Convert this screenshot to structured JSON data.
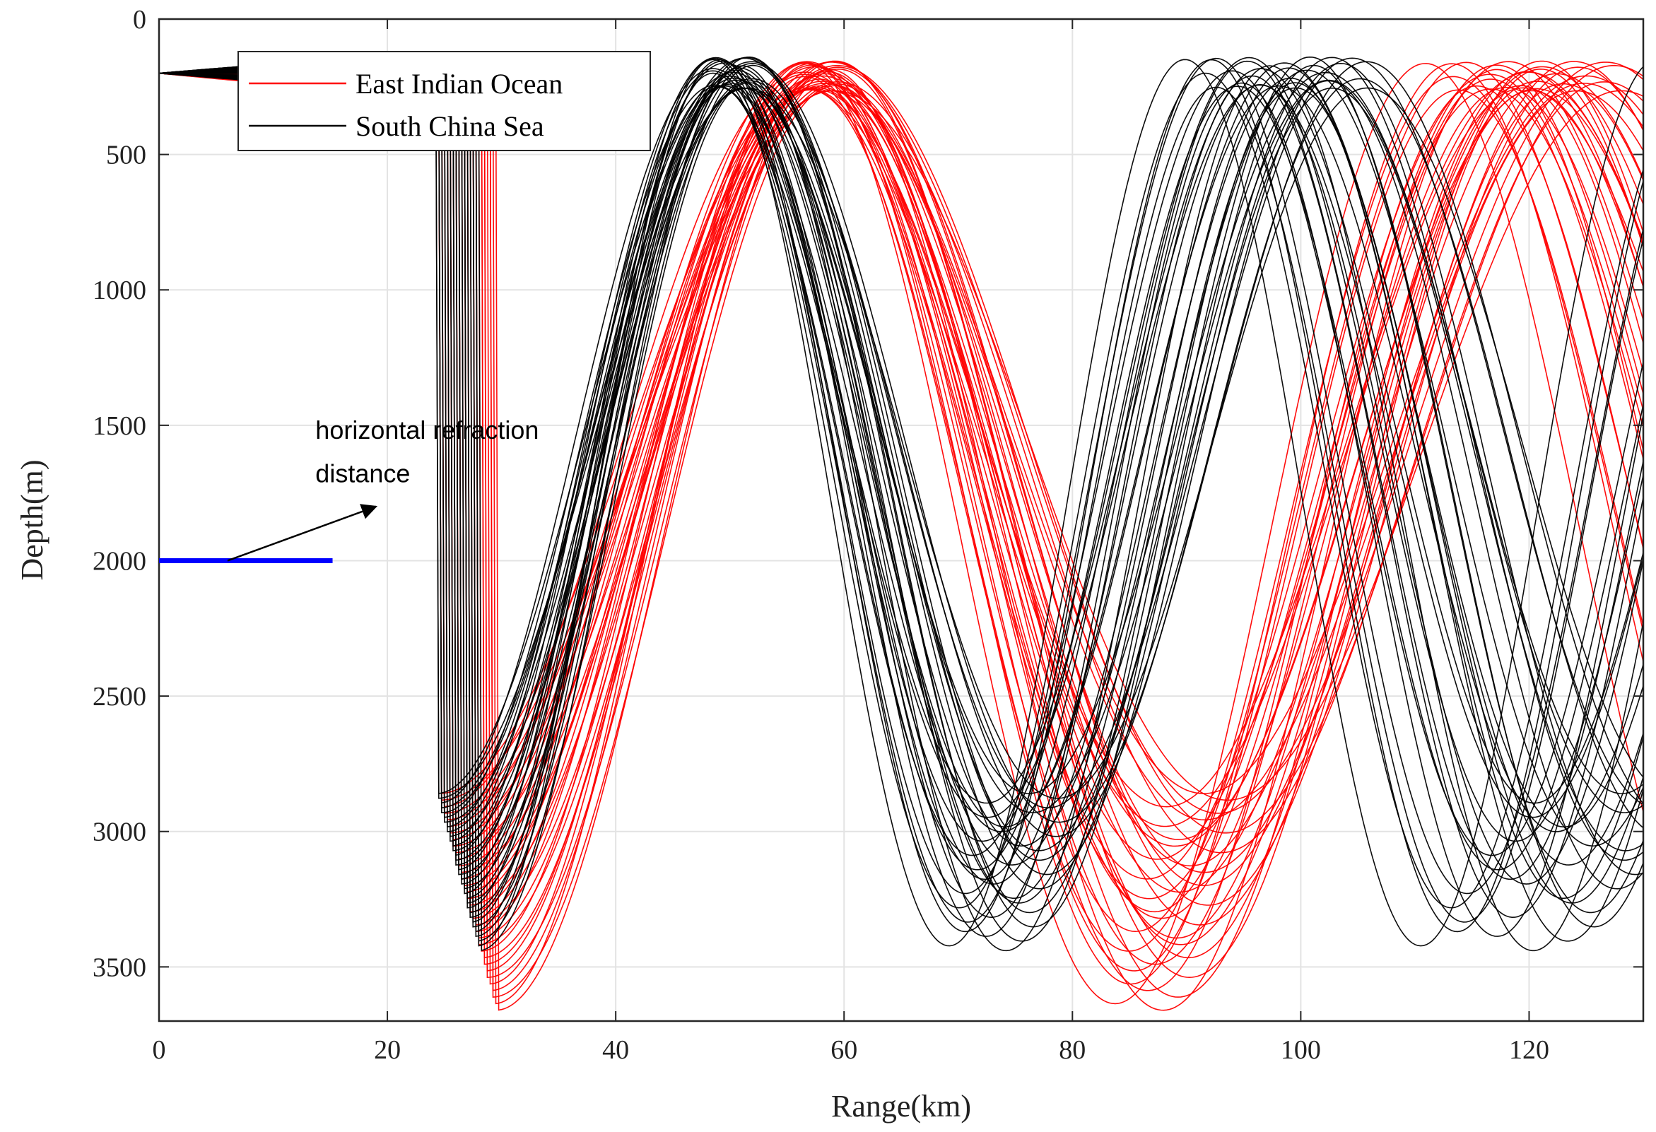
{
  "chart_data": {
    "type": "line",
    "title": "",
    "xlabel": "Range(km)",
    "ylabel": "Depth(m)",
    "xlim": [
      0,
      130
    ],
    "ylim": [
      0,
      3700
    ],
    "y_reversed": true,
    "grid": true,
    "x_ticks": [
      0,
      20,
      40,
      60,
      80,
      100,
      120
    ],
    "y_ticks": [
      0,
      500,
      1000,
      1500,
      2000,
      2500,
      3000,
      3500
    ],
    "legend_position": "top-left",
    "series": [
      {
        "name": "East Indian Ocean",
        "color": "#ff0000",
        "source_depth": 200,
        "ray_count": 34,
        "turning_depth_range": [
          155,
          265
        ],
        "lower_turning_depth_range": [
          2860,
          3660
        ],
        "first_lower_turn_range_km": [
          24.5,
          29.5
        ],
        "first_upper_turn_range_km": [
          56.5,
          59.5
        ],
        "cycle_range_km": [
          57,
          59.5
        ]
      },
      {
        "name": "South China Sea",
        "color": "#000000",
        "source_depth": 200,
        "ray_count": 34,
        "turning_depth_range": [
          140,
          255
        ],
        "lower_turning_depth_range": [
          2860,
          3440
        ],
        "first_lower_turn_range_km": [
          24.3,
          28
        ],
        "first_upper_turn_range_km": [
          48.5,
          52
        ],
        "cycle_range_km": [
          48.5,
          52
        ]
      }
    ],
    "annotations": [
      {
        "text_lines": [
          "horizontal refraction",
          "distance"
        ],
        "marker": {
          "type": "segment",
          "color": "#0000ff",
          "x_range_km": [
            0,
            15.2
          ],
          "depth": 2000
        },
        "arrow": {
          "from": [
            6,
            2000
          ],
          "to": [
            19,
            1800
          ]
        }
      }
    ]
  }
}
